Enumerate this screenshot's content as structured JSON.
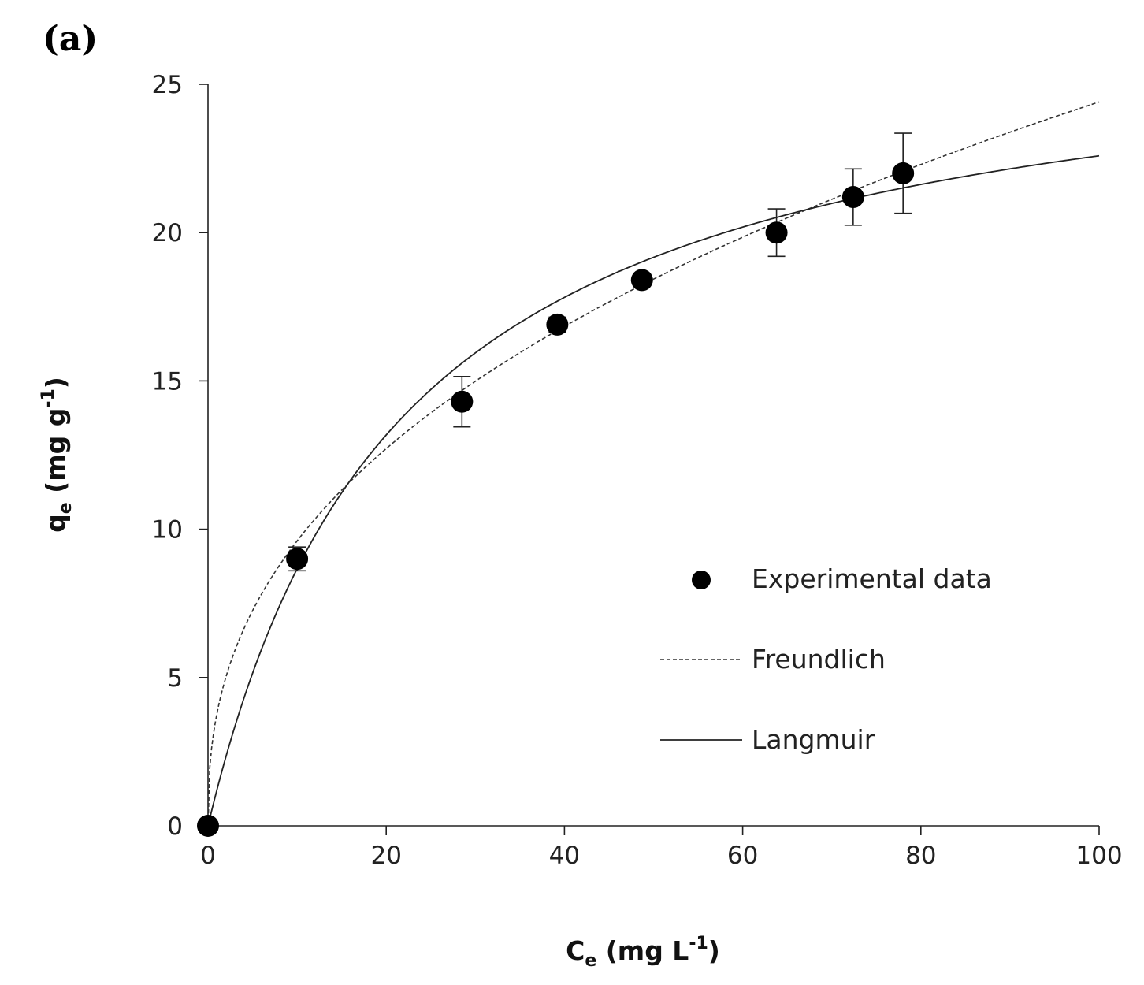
{
  "panel_label": "(a)",
  "chart_data": {
    "type": "scatter",
    "x_axis": {
      "title": "C",
      "title_sub": "e",
      "title_unit_pre": " (mg L",
      "title_unit_sup": "-1",
      "title_unit_post": ")",
      "range": [
        0,
        100
      ],
      "ticks": [
        0,
        20,
        40,
        60,
        80,
        100
      ]
    },
    "y_axis": {
      "title": "q",
      "title_sub": "e",
      "title_unit_pre": " (mg g",
      "title_unit_sup": "-1",
      "title_unit_post": ")",
      "range": [
        0,
        25
      ],
      "ticks": [
        0,
        5,
        10,
        15,
        20,
        25
      ]
    },
    "grid": false,
    "legend_position": "center-right",
    "series": [
      {
        "name": "Experimental data",
        "kind": "points",
        "x": [
          0,
          10,
          28.5,
          39.2,
          48.7,
          63.8,
          72.4,
          78.0
        ],
        "y": [
          0,
          9.0,
          14.3,
          16.9,
          18.4,
          20.0,
          21.2,
          22.0
        ],
        "error": [
          0,
          0.4,
          0.85,
          0.25,
          0.2,
          0.8,
          0.95,
          1.35
        ]
      },
      {
        "name": "Freundlich",
        "kind": "curve",
        "style": "dashed",
        "model": {
          "Kf": 3.78,
          "n_inv": 0.405
        }
      },
      {
        "name": "Langmuir",
        "kind": "curve",
        "style": "solid",
        "model": {
          "qmax": 27.5,
          "KL": 0.046
        }
      }
    ]
  }
}
